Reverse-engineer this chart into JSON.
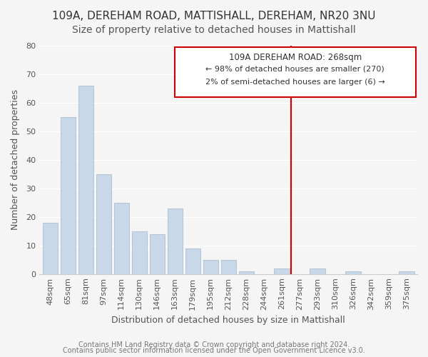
{
  "title1": "109A, DEREHAM ROAD, MATTISHALL, DEREHAM, NR20 3NU",
  "title2": "Size of property relative to detached houses in Mattishall",
  "xlabel": "Distribution of detached houses by size in Mattishall",
  "ylabel": "Number of detached properties",
  "bar_labels": [
    "48sqm",
    "65sqm",
    "81sqm",
    "97sqm",
    "114sqm",
    "130sqm",
    "146sqm",
    "163sqm",
    "179sqm",
    "195sqm",
    "212sqm",
    "228sqm",
    "244sqm",
    "261sqm",
    "277sqm",
    "293sqm",
    "310sqm",
    "326sqm",
    "342sqm",
    "359sqm",
    "375sqm"
  ],
  "bar_values": [
    18,
    55,
    66,
    35,
    25,
    15,
    14,
    23,
    9,
    5,
    5,
    1,
    0,
    2,
    0,
    2,
    0,
    1,
    0,
    0,
    1
  ],
  "bar_color": "#c8d8e8",
  "bar_edge_color": "#a0b8cc",
  "vline_x": 13.5,
  "vline_color": "#cc0000",
  "annotation_title": "109A DEREHAM ROAD: 268sqm",
  "annotation_line1": "← 98% of detached houses are smaller (270)",
  "annotation_line2": "2% of semi-detached houses are larger (6) →",
  "annotation_box_color": "#ffffff",
  "annotation_box_edge": "#cc0000",
  "ylim": [
    0,
    80
  ],
  "yticks": [
    0,
    10,
    20,
    30,
    40,
    50,
    60,
    70,
    80
  ],
  "footer1": "Contains HM Land Registry data © Crown copyright and database right 2024.",
  "footer2": "Contains public sector information licensed under the Open Government Licence v3.0.",
  "background_color": "#f5f5f5",
  "grid_color": "#ffffff",
  "title_fontsize": 11,
  "subtitle_fontsize": 10,
  "axis_label_fontsize": 9,
  "tick_fontsize": 8,
  "footer_fontsize": 7
}
